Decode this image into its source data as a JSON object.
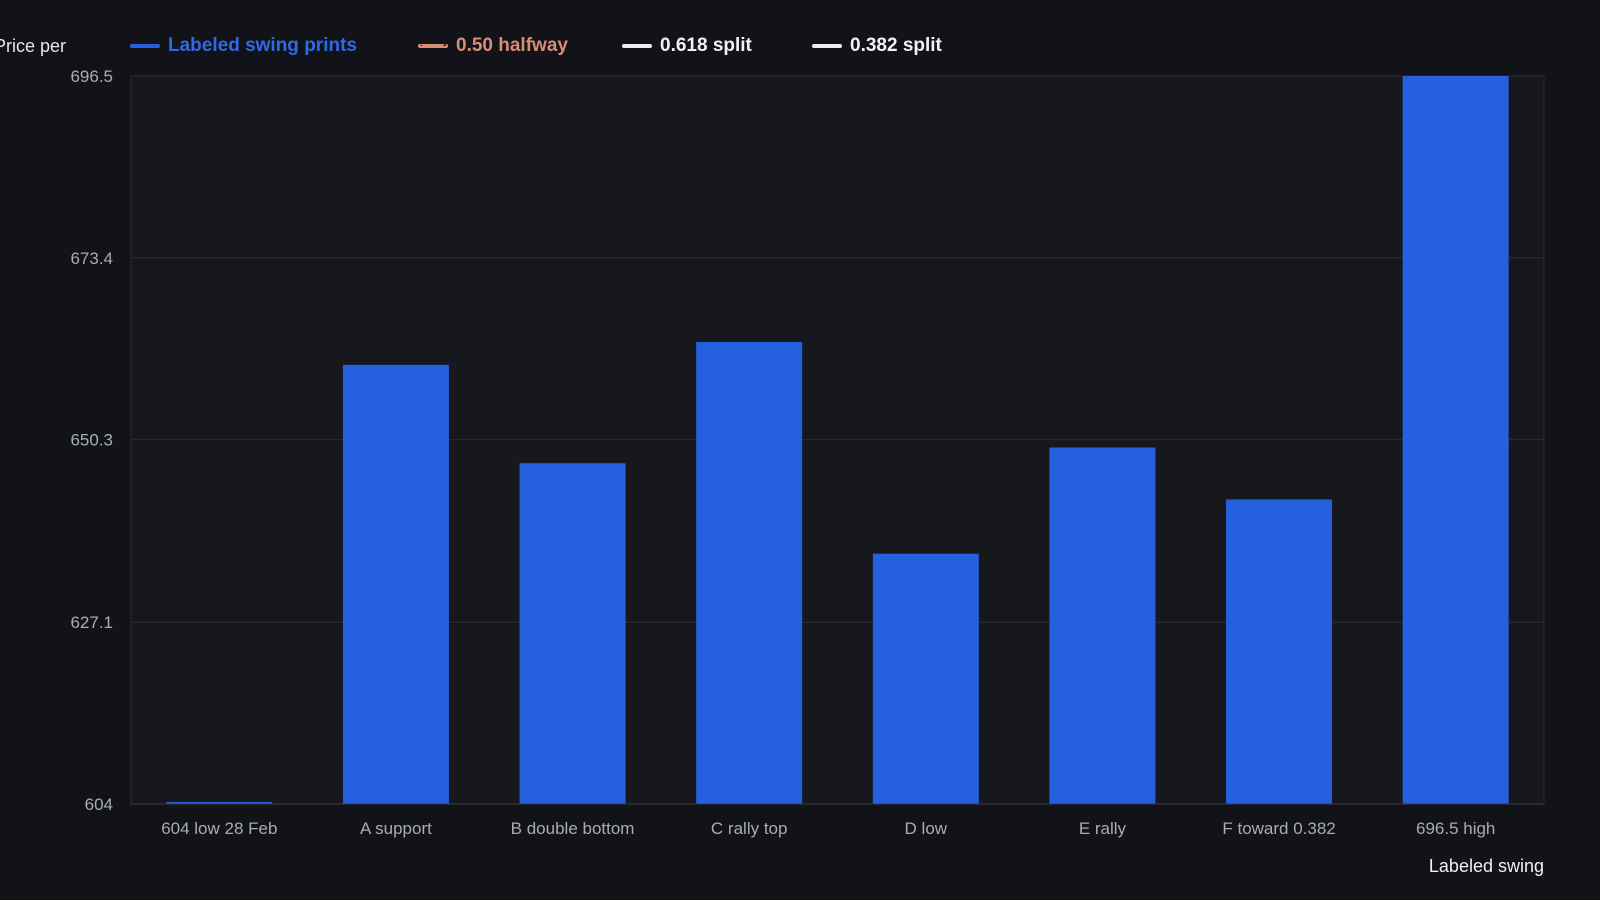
{
  "chart_data": {
    "type": "bar",
    "ylabel": "Price per bushel, ¢/bu",
    "xlabel": "Labeled swing",
    "categories": [
      "604 low 28 Feb",
      "A support",
      "B double bottom",
      "C rally top",
      "D low",
      "E rally",
      "F toward 0.382",
      "696.5 high"
    ],
    "series": [
      {
        "name": "Labeled swing prints",
        "values": [
          604,
          659.8,
          647.3,
          662.7,
          635.8,
          649.3,
          642.7,
          696.5
        ]
      }
    ],
    "reference_lines": [
      {
        "name": "0.50 halfway",
        "style": "dashed",
        "color": "#d98c74"
      },
      {
        "name": "0.618 split",
        "style": "solid",
        "color": "#eeeeee"
      },
      {
        "name": "0.382 split",
        "style": "solid",
        "color": "#eeeeee"
      }
    ],
    "yticks": [
      604,
      627.1,
      650.3,
      673.4,
      696.5
    ],
    "ylim": [
      604,
      696.5
    ],
    "grid": true,
    "legend_position": "top",
    "colors": {
      "background": "#111318",
      "plot_background": "#16181d",
      "bar": "#2560de",
      "grid": "#2a2d33",
      "tick_text": "#a8acb3"
    }
  }
}
